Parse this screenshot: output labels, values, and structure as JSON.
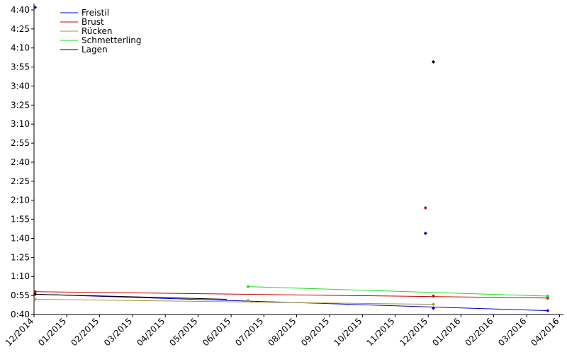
{
  "chart_data": {
    "type": "scatter-trend",
    "xlim": [
      2014.917,
      2016.26
    ],
    "ylim": [
      40,
      285
    ],
    "xticks": [
      {
        "value": 2014.917,
        "label": "12/2014"
      },
      {
        "value": 2015.0,
        "label": "01/2015"
      },
      {
        "value": 2015.083,
        "label": "02/2015"
      },
      {
        "value": 2015.167,
        "label": "03/2015"
      },
      {
        "value": 2015.25,
        "label": "04/2015"
      },
      {
        "value": 2015.333,
        "label": "05/2015"
      },
      {
        "value": 2015.417,
        "label": "06/2015"
      },
      {
        "value": 2015.5,
        "label": "07/2015"
      },
      {
        "value": 2015.583,
        "label": "08/2015"
      },
      {
        "value": 2015.667,
        "label": "09/2015"
      },
      {
        "value": 2015.75,
        "label": "10/2015"
      },
      {
        "value": 2015.833,
        "label": "11/2015"
      },
      {
        "value": 2015.917,
        "label": "12/2015"
      },
      {
        "value": 2016.0,
        "label": "01/2016"
      },
      {
        "value": 2016.083,
        "label": "02/2016"
      },
      {
        "value": 2016.167,
        "label": "03/2016"
      },
      {
        "value": 2016.25,
        "label": "04/2016"
      }
    ],
    "yticks": [
      {
        "value": 40,
        "label": "0:40"
      },
      {
        "value": 55,
        "label": "0:55"
      },
      {
        "value": 70,
        "label": "1:10"
      },
      {
        "value": 85,
        "label": "1:25"
      },
      {
        "value": 100,
        "label": "1:40"
      },
      {
        "value": 115,
        "label": "1:55"
      },
      {
        "value": 130,
        "label": "2:10"
      },
      {
        "value": 145,
        "label": "2:25"
      },
      {
        "value": 160,
        "label": "2:40"
      },
      {
        "value": 175,
        "label": "2:55"
      },
      {
        "value": 190,
        "label": "3:10"
      },
      {
        "value": 205,
        "label": "3:25"
      },
      {
        "value": 220,
        "label": "3:40"
      },
      {
        "value": 235,
        "label": "3:55"
      },
      {
        "value": 250,
        "label": "4:10"
      },
      {
        "value": 265,
        "label": "4:25"
      },
      {
        "value": 280,
        "label": "4:40"
      }
    ],
    "series": [
      {
        "name": "Freistil",
        "color": "#0000cc",
        "x": [
          2014.92,
          2015.91,
          2015.93,
          2016.22
        ],
        "values": [
          282,
          104,
          45,
          43
        ],
        "trend_x": [
          2014.917,
          2016.22
        ],
        "trend_values": [
          56,
          43
        ]
      },
      {
        "name": "Brust",
        "color": "#cc0000",
        "x": [
          2014.92,
          2015.91,
          2015.93,
          2016.22
        ],
        "values": [
          58,
          124,
          54.5,
          53
        ],
        "trend_x": [
          2014.917,
          2016.22
        ],
        "trend_values": [
          58,
          53
        ]
      },
      {
        "name": "Rücken",
        "color": "#a8963c",
        "x": [
          2014.92,
          2015.46,
          2015.93
        ],
        "values": [
          52,
          51,
          48
        ],
        "trend_x": [
          2014.917,
          2015.93
        ],
        "trend_values": [
          52,
          48
        ]
      },
      {
        "name": "Schmetterling",
        "color": "#22dd22",
        "x": [
          2015.46,
          2016.22
        ],
        "values": [
          62,
          54.5
        ],
        "trend_x": [
          2015.46,
          2016.22
        ],
        "trend_values": [
          62,
          54.5
        ]
      },
      {
        "name": "Lagen",
        "color": "#000000",
        "x": [
          2014.92,
          2015.93
        ],
        "values": [
          56,
          239
        ],
        "trend_x": [
          2014.917,
          2015.406
        ],
        "trend_values": [
          56,
          52
        ]
      }
    ]
  }
}
